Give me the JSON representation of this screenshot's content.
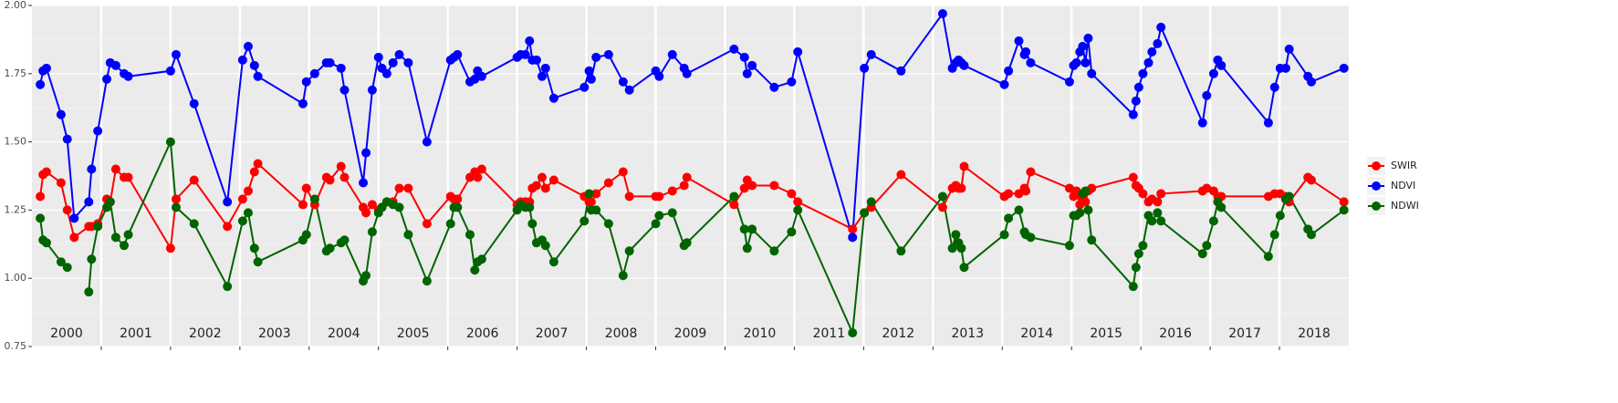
{
  "chart_data": {
    "type": "line",
    "x": [
      2000.12,
      2000.16,
      2000.21,
      2000.42,
      2000.51,
      2000.61,
      2000.82,
      2000.86,
      2000.95,
      2001.08,
      2001.13,
      2001.21,
      2001.33,
      2001.39,
      2002.0,
      2002.08,
      2002.34,
      2002.82,
      2003.04,
      2003.12,
      2003.21,
      2003.26,
      2003.91,
      2003.96,
      2004.08,
      2004.25,
      2004.3,
      2004.46,
      2004.51,
      2004.78,
      2004.82,
      2004.91,
      2005.0,
      2005.05,
      2005.12,
      2005.21,
      2005.3,
      2005.43,
      2005.7,
      2006.04,
      2006.09,
      2006.14,
      2006.32,
      2006.39,
      2006.43,
      2006.49,
      2007.0,
      2007.05,
      2007.12,
      2007.18,
      2007.22,
      2007.28,
      2007.36,
      2007.41,
      2007.53,
      2007.97,
      2008.04,
      2008.07,
      2008.14,
      2008.32,
      2008.53,
      2008.62,
      2009.0,
      2009.05,
      2009.24,
      2009.41,
      2009.45,
      2010.13,
      2010.28,
      2010.32,
      2010.39,
      2010.71,
      2010.96,
      2011.05,
      2011.84,
      2012.01,
      2012.11,
      2012.54,
      2013.14,
      2013.28,
      2013.33,
      2013.37,
      2013.41,
      2013.45,
      2014.03,
      2014.09,
      2014.24,
      2014.32,
      2014.34,
      2014.41,
      2014.97,
      2015.03,
      2015.07,
      2015.12,
      2015.16,
      2015.2,
      2015.24,
      2015.29,
      2015.89,
      2015.93,
      2015.97,
      2016.03,
      2016.11,
      2016.16,
      2016.24,
      2016.29,
      2016.89,
      2016.95,
      2017.05,
      2017.11,
      2017.16,
      2017.84,
      2017.93,
      2018.01,
      2018.09,
      2018.14,
      2018.41,
      2018.46,
      2018.93
    ],
    "series": [
      {
        "name": "SWIR",
        "color": "#ff0000",
        "values": [
          1.3,
          1.38,
          1.39,
          1.35,
          1.25,
          1.15,
          1.19,
          1.19,
          1.2,
          1.29,
          1.28,
          1.4,
          1.37,
          1.37,
          1.11,
          1.29,
          1.36,
          1.19,
          1.29,
          1.32,
          1.39,
          1.42,
          1.27,
          1.33,
          1.27,
          1.37,
          1.36,
          1.41,
          1.37,
          1.26,
          1.24,
          1.27,
          1.25,
          1.26,
          1.28,
          1.28,
          1.33,
          1.33,
          1.2,
          1.3,
          1.29,
          1.29,
          1.37,
          1.39,
          1.37,
          1.4,
          1.27,
          1.28,
          1.28,
          1.28,
          1.33,
          1.34,
          1.37,
          1.33,
          1.36,
          1.3,
          1.28,
          1.28,
          1.31,
          1.35,
          1.39,
          1.3,
          1.3,
          1.3,
          1.32,
          1.34,
          1.37,
          1.27,
          1.33,
          1.36,
          1.34,
          1.34,
          1.31,
          1.28,
          1.18,
          1.24,
          1.26,
          1.38,
          1.26,
          1.33,
          1.34,
          1.33,
          1.33,
          1.41,
          1.3,
          1.31,
          1.31,
          1.33,
          1.32,
          1.39,
          1.33,
          1.3,
          1.32,
          1.27,
          1.3,
          1.28,
          1.32,
          1.33,
          1.37,
          1.34,
          1.33,
          1.31,
          1.28,
          1.29,
          1.28,
          1.31,
          1.32,
          1.33,
          1.32,
          1.3,
          1.3,
          1.3,
          1.31,
          1.31,
          1.3,
          1.28,
          1.37,
          1.36,
          1.28
        ]
      },
      {
        "name": "NDVI",
        "color": "#0000ff",
        "values": [
          1.71,
          1.76,
          1.77,
          1.6,
          1.51,
          1.22,
          1.28,
          1.4,
          1.54,
          1.73,
          1.79,
          1.78,
          1.75,
          1.74,
          1.76,
          1.82,
          1.64,
          1.28,
          1.8,
          1.85,
          1.78,
          1.74,
          1.64,
          1.72,
          1.75,
          1.79,
          1.79,
          1.77,
          1.69,
          1.35,
          1.46,
          1.69,
          1.81,
          1.77,
          1.75,
          1.79,
          1.82,
          1.79,
          1.5,
          1.8,
          1.81,
          1.82,
          1.72,
          1.73,
          1.76,
          1.74,
          1.81,
          1.82,
          1.82,
          1.87,
          1.8,
          1.8,
          1.74,
          1.77,
          1.66,
          1.7,
          1.76,
          1.73,
          1.81,
          1.82,
          1.72,
          1.69,
          1.76,
          1.74,
          1.82,
          1.77,
          1.75,
          1.84,
          1.81,
          1.75,
          1.78,
          1.7,
          1.72,
          1.83,
          1.15,
          1.77,
          1.82,
          1.76,
          1.97,
          1.77,
          1.79,
          1.8,
          1.79,
          1.78,
          1.71,
          1.76,
          1.87,
          1.82,
          1.83,
          1.79,
          1.72,
          1.78,
          1.79,
          1.83,
          1.85,
          1.79,
          1.88,
          1.75,
          1.6,
          1.65,
          1.7,
          1.75,
          1.79,
          1.83,
          1.86,
          1.92,
          1.57,
          1.67,
          1.75,
          1.8,
          1.78,
          1.57,
          1.7,
          1.77,
          1.77,
          1.84,
          1.74,
          1.72,
          1.77
        ]
      },
      {
        "name": "NDWI",
        "color": "#006400",
        "values": [
          1.22,
          1.14,
          1.13,
          1.06,
          1.04,
          null,
          0.95,
          1.07,
          1.19,
          1.26,
          1.28,
          1.15,
          1.12,
          1.16,
          1.5,
          1.26,
          1.2,
          0.97,
          1.21,
          1.24,
          1.11,
          1.06,
          1.14,
          1.16,
          1.29,
          1.1,
          1.11,
          1.13,
          1.14,
          0.99,
          1.01,
          1.17,
          1.24,
          1.26,
          1.28,
          1.27,
          1.26,
          1.16,
          0.99,
          1.2,
          1.26,
          1.26,
          1.16,
          1.03,
          1.06,
          1.07,
          1.25,
          1.27,
          1.26,
          1.26,
          1.2,
          1.13,
          1.14,
          1.12,
          1.06,
          1.21,
          1.31,
          1.25,
          1.25,
          1.2,
          1.01,
          1.1,
          1.2,
          1.23,
          1.24,
          1.12,
          1.13,
          1.3,
          1.18,
          1.11,
          1.18,
          1.1,
          1.17,
          1.25,
          0.8,
          1.24,
          1.28,
          1.1,
          1.3,
          1.11,
          1.16,
          1.13,
          1.11,
          1.04,
          1.16,
          1.22,
          1.25,
          1.17,
          1.16,
          1.15,
          1.12,
          1.23,
          1.23,
          1.24,
          1.31,
          1.32,
          1.25,
          1.14,
          0.97,
          1.04,
          1.09,
          1.12,
          1.23,
          1.21,
          1.24,
          1.21,
          1.09,
          1.12,
          1.21,
          1.28,
          1.26,
          1.08,
          1.16,
          1.23,
          1.29,
          1.3,
          1.18,
          1.16,
          1.25
        ]
      }
    ],
    "xlim": [
      2000,
      2019
    ],
    "xticks": [
      2000,
      2001,
      2002,
      2003,
      2004,
      2005,
      2006,
      2007,
      2008,
      2009,
      2010,
      2011,
      2012,
      2013,
      2014,
      2015,
      2016,
      2017,
      2018
    ],
    "ylim": [
      0.75,
      2.0
    ],
    "yticks": [
      {
        "value": 0.75,
        "label": "0.75"
      },
      {
        "value": 1.0,
        "label": "1.00"
      },
      {
        "value": 1.25,
        "label": "1.25"
      },
      {
        "value": 1.5,
        "label": "1.50"
      },
      {
        "value": 1.75,
        "label": "1.75"
      },
      {
        "value": 2.0,
        "label": "2.00"
      }
    ],
    "grid": true,
    "legend": "right"
  }
}
